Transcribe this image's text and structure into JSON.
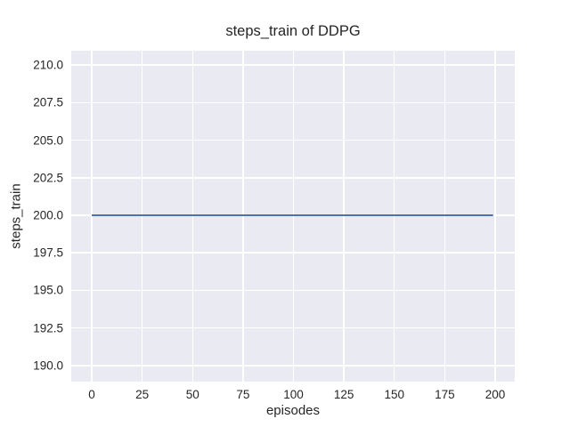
{
  "figure": {
    "background": "#ffffff",
    "axes_background": "#eaeaf2",
    "grid_color": "#ffffff",
    "text_color": "#262626"
  },
  "chart_data": {
    "type": "line",
    "title": "steps_train of DDPG",
    "xlabel": "episodes",
    "ylabel": "steps_train",
    "grid": true,
    "legend": null,
    "xlim": [
      -10.18,
      209.73
    ],
    "ylim": [
      188.93,
      210.95
    ],
    "x_tick_values": [
      0,
      25,
      50,
      75,
      100,
      125,
      150,
      175,
      200
    ],
    "x_tick_labels": [
      "0",
      "25",
      "50",
      "75",
      "100",
      "125",
      "150",
      "175",
      "200"
    ],
    "y_tick_values": [
      190.0,
      192.5,
      195.0,
      197.5,
      200.0,
      202.5,
      205.0,
      207.5,
      210.0
    ],
    "y_tick_labels": [
      "190.0",
      "192.5",
      "195.0",
      "197.5",
      "200.0",
      "202.5",
      "205.0",
      "207.5",
      "210.0"
    ],
    "series": [
      {
        "name": "steps_train",
        "color": "#4c72b0",
        "line_width": 2,
        "x": [
          0,
          199
        ],
        "y": [
          200,
          200
        ]
      }
    ]
  }
}
